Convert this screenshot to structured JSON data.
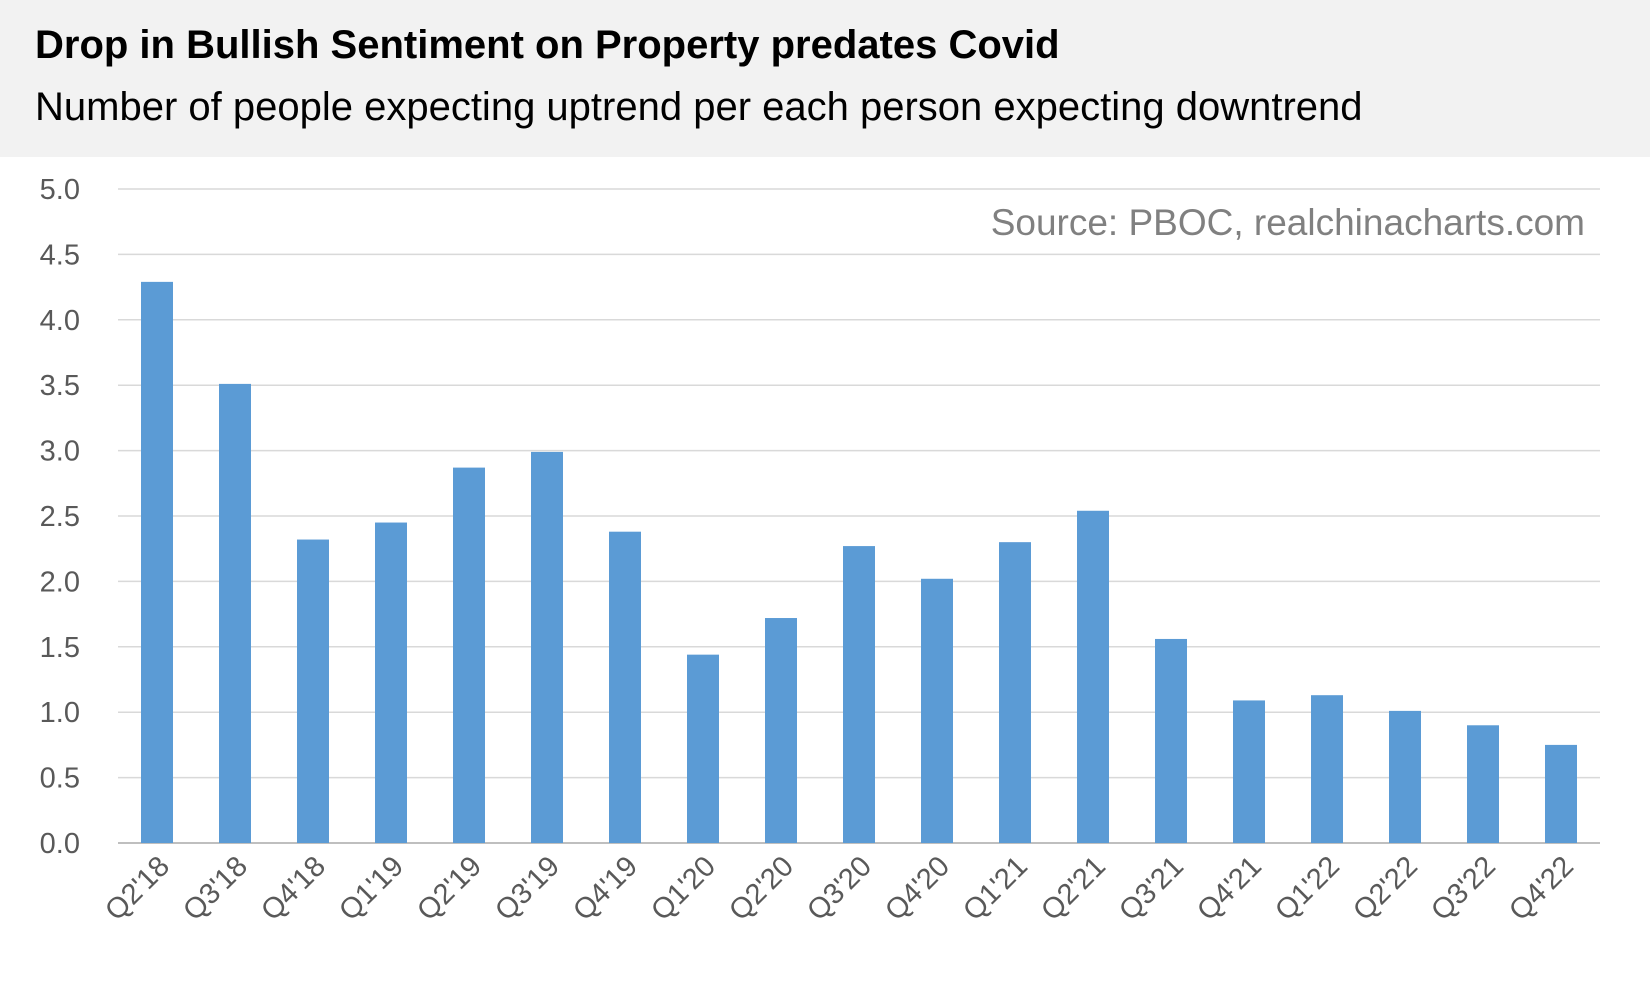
{
  "header": {
    "title": "Drop in Bullish Sentiment on Property predates Covid",
    "subtitle": "Number of people expecting uptrend per each person expecting downtrend"
  },
  "source": "Source: PBOC, realchinacharts.com",
  "colors": {
    "bar": "#5b9bd5",
    "grid": "#d9d9d9",
    "axis": "#bfbfbf",
    "header_bg": "#f2f2f2"
  },
  "chart_data": {
    "type": "bar",
    "categories": [
      "Q2'18",
      "Q3'18",
      "Q4'18",
      "Q1'19",
      "Q2'19",
      "Q3'19",
      "Q4'19",
      "Q1'20",
      "Q2'20",
      "Q3'20",
      "Q4'20",
      "Q1'21",
      "Q2'21",
      "Q3'21",
      "Q4'21",
      "Q1'22",
      "Q2'22",
      "Q3'22",
      "Q4'22"
    ],
    "values": [
      4.29,
      3.51,
      2.32,
      2.45,
      2.87,
      2.99,
      2.38,
      1.44,
      1.72,
      2.27,
      2.02,
      2.3,
      2.54,
      1.56,
      1.09,
      1.13,
      1.01,
      0.9,
      0.75
    ],
    "ylim": [
      0,
      5
    ],
    "yticks": [
      "0.0",
      "0.5",
      "1.0",
      "1.5",
      "2.0",
      "2.5",
      "3.0",
      "3.5",
      "4.0",
      "4.5",
      "5.0"
    ],
    "grid": true,
    "legend": "none"
  }
}
